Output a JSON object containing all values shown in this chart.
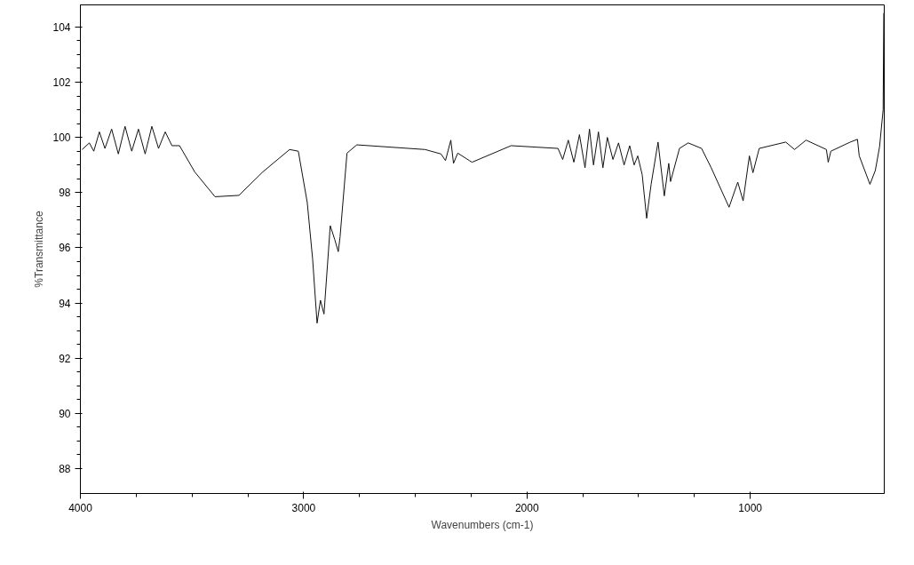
{
  "chart_data": {
    "type": "line",
    "xlabel": "Wavenumbers (cm-1)",
    "ylabel": "%Transmittance",
    "xlim": [
      4000,
      400
    ],
    "ylim": [
      87.1,
      104.8
    ],
    "xticks": [
      4000,
      3000,
      2000,
      1000
    ],
    "yticks": [
      88,
      90,
      92,
      94,
      96,
      98,
      100,
      102,
      104
    ],
    "grid": false,
    "marker": "none",
    "line_style": "solid",
    "x": [
      3992,
      3960,
      3940,
      3915,
      3890,
      3860,
      3830,
      3800,
      3770,
      3740,
      3710,
      3680,
      3650,
      3620,
      3590,
      3556,
      3488,
      3397,
      3290,
      3183,
      3063,
      3024,
      2984,
      2960,
      2940,
      2925,
      2909,
      2881,
      2861,
      2845,
      2837,
      2806,
      2762,
      2456,
      2385,
      2365,
      2341,
      2329,
      2310,
      2258,
      2246,
      2071,
      1861,
      1840,
      1815,
      1790,
      1765,
      1740,
      1720,
      1702,
      1680,
      1660,
      1640,
      1615,
      1590,
      1565,
      1540,
      1520,
      1504,
      1484,
      1464,
      1444,
      1413,
      1385,
      1365,
      1357,
      1317,
      1278,
      1218,
      1175,
      1095,
      1056,
      1032,
      1004,
      988,
      960,
      841,
      802,
      750,
      659,
      651,
      639,
      552,
      520,
      512,
      464,
      440,
      421,
      405,
      402
    ],
    "series": [
      {
        "color": "#111111",
        "values": [
          99.56,
          99.8,
          99.5,
          100.2,
          99.6,
          100.3,
          99.4,
          100.4,
          99.5,
          100.3,
          99.4,
          100.4,
          99.6,
          100.2,
          99.7,
          99.7,
          98.75,
          97.85,
          97.9,
          98.75,
          99.56,
          99.5,
          97.64,
          95.6,
          93.27,
          94.1,
          93.6,
          96.8,
          96.3,
          95.86,
          96.4,
          99.43,
          99.73,
          99.56,
          99.4,
          99.16,
          99.9,
          99.06,
          99.43,
          99.16,
          99.1,
          99.7,
          99.6,
          99.2,
          99.9,
          99.1,
          100.1,
          98.9,
          100.3,
          99.0,
          100.2,
          98.9,
          100.0,
          99.2,
          99.8,
          99.0,
          99.7,
          99.0,
          99.33,
          98.65,
          97.07,
          98.3,
          99.83,
          97.88,
          99.06,
          98.4,
          99.6,
          99.8,
          99.6,
          98.9,
          97.47,
          98.38,
          97.7,
          99.33,
          98.72,
          99.6,
          99.83,
          99.56,
          99.9,
          99.56,
          99.1,
          99.5,
          99.83,
          99.93,
          99.33,
          98.3,
          98.8,
          99.66,
          101.0,
          104.5
        ]
      }
    ]
  }
}
